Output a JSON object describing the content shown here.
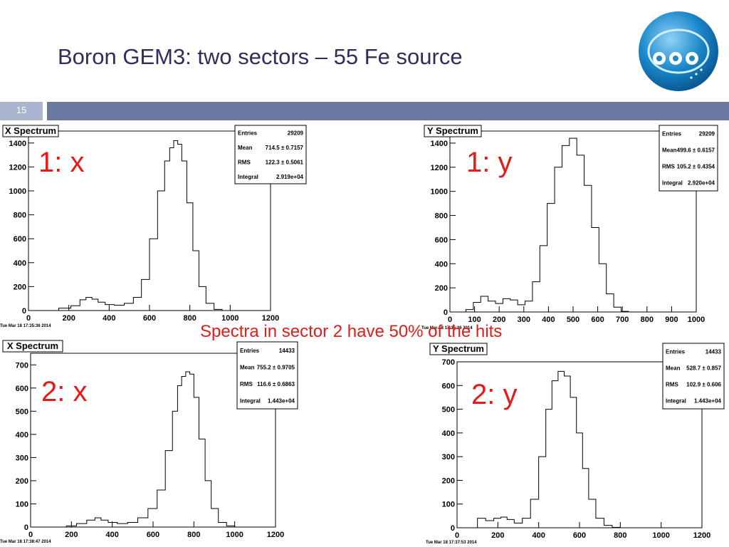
{
  "slide": {
    "title": "Boron GEM3: two sectors – 55 Fe source",
    "page_number": "15",
    "note": "Spectra in sector 2 have 50% of the hits",
    "colors": {
      "title": "#2e2e5a",
      "band": "#6a78a0",
      "page_box": "#aab5d0",
      "annotation": "#e31b1b",
      "logo_blue": "#1a87c9"
    },
    "logo_icon": "ess-logo-icon"
  },
  "chart_data": [
    {
      "type": "histogram",
      "title": "X Spectrum",
      "label": "1: x",
      "xlim": [
        0,
        1200
      ],
      "ylim": [
        0,
        1500
      ],
      "xticks": [
        0,
        200,
        400,
        600,
        800,
        1000,
        1200
      ],
      "yticks": [
        0,
        200,
        400,
        600,
        800,
        1000,
        1200,
        1400
      ],
      "stats": [
        [
          "Entries",
          "29209"
        ],
        [
          "Mean",
          "714.5 ± 0.7157"
        ],
        [
          "RMS",
          "122.3 ± 0.5061"
        ],
        [
          "Integral",
          "2.919e+04"
        ]
      ],
      "timestamp": "Tue Mar 18 17:35:36 2014",
      "x": [
        180,
        240,
        270,
        300,
        330,
        360,
        400,
        450,
        500,
        540,
        580,
        620,
        660,
        690,
        710,
        730,
        750,
        770,
        800,
        830,
        860,
        900,
        940
      ],
      "y": [
        20,
        40,
        90,
        110,
        95,
        70,
        50,
        45,
        60,
        110,
        260,
        600,
        1000,
        1250,
        1360,
        1420,
        1390,
        1250,
        900,
        500,
        200,
        60,
        10
      ]
    },
    {
      "type": "histogram",
      "title": "Y Spectrum",
      "label": "1: y",
      "xlim": [
        0,
        1000
      ],
      "ylim": [
        0,
        1500
      ],
      "xticks": [
        0,
        100,
        200,
        300,
        400,
        500,
        600,
        700,
        800,
        900,
        1000
      ],
      "yticks": [
        0,
        200,
        400,
        600,
        800,
        1000,
        1200,
        1400
      ],
      "stats": [
        [
          "Entries",
          "29209"
        ],
        [
          "Mean",
          "499.6 ± 0.6157"
        ],
        [
          "RMS",
          "105.2 ± 0.4354"
        ],
        [
          "Integral",
          "2.920e+04"
        ]
      ],
      "timestamp": "Tue Mar 18 17:35:36 2014",
      "x": [
        80,
        110,
        140,
        170,
        200,
        230,
        260,
        290,
        320,
        350,
        380,
        410,
        440,
        470,
        500,
        530,
        560,
        590,
        620,
        650,
        680,
        710
      ],
      "y": [
        20,
        80,
        130,
        90,
        70,
        110,
        100,
        60,
        90,
        250,
        550,
        900,
        1200,
        1380,
        1440,
        1300,
        1050,
        700,
        400,
        150,
        40,
        5
      ]
    },
    {
      "type": "histogram",
      "title": "X Spectrum",
      "label": "2: x",
      "xlim": [
        0,
        1200
      ],
      "ylim": [
        0,
        750
      ],
      "xticks": [
        0,
        200,
        400,
        600,
        800,
        1000,
        1200
      ],
      "yticks": [
        0,
        100,
        200,
        300,
        400,
        500,
        600,
        700
      ],
      "stats": [
        [
          "Entries",
          "14433"
        ],
        [
          "Mean",
          "755.2 ± 0.9705"
        ],
        [
          "RMS",
          "116.6 ± 0.6863"
        ],
        [
          "Integral",
          "1.443e+04"
        ]
      ],
      "timestamp": "Tue Mar 18 17:38:47 2014",
      "x": [
        200,
        250,
        300,
        330,
        360,
        400,
        450,
        500,
        550,
        600,
        640,
        680,
        710,
        730,
        750,
        770,
        790,
        810,
        840,
        870,
        900,
        940,
        980
      ],
      "y": [
        5,
        15,
        30,
        40,
        30,
        20,
        15,
        20,
        40,
        80,
        160,
        330,
        500,
        610,
        650,
        670,
        660,
        560,
        380,
        200,
        80,
        20,
        5
      ]
    },
    {
      "type": "histogram",
      "title": "Y Spectrum",
      "label": "2: y",
      "xlim": [
        0,
        1200
      ],
      "ylim": [
        0,
        700
      ],
      "xticks": [
        0,
        200,
        400,
        600,
        800,
        1000,
        1200
      ],
      "yticks": [
        0,
        100,
        200,
        300,
        400,
        500,
        600,
        700
      ],
      "stats": [
        [
          "Entries",
          "14433"
        ],
        [
          "Mean",
          "528.7 ± 0.857"
        ],
        [
          "RMS",
          "102.9 ± 0.606"
        ],
        [
          "Integral",
          "1.443e+04"
        ]
      ],
      "timestamp": "Tue Mar 18 17:37:53 2014",
      "x": [
        120,
        160,
        200,
        230,
        260,
        300,
        340,
        380,
        420,
        450,
        480,
        510,
        540,
        570,
        600,
        630,
        660,
        700,
        740,
        780
      ],
      "y": [
        40,
        30,
        40,
        45,
        35,
        20,
        40,
        120,
        300,
        500,
        620,
        660,
        640,
        550,
        400,
        250,
        120,
        40,
        10,
        2
      ]
    }
  ]
}
